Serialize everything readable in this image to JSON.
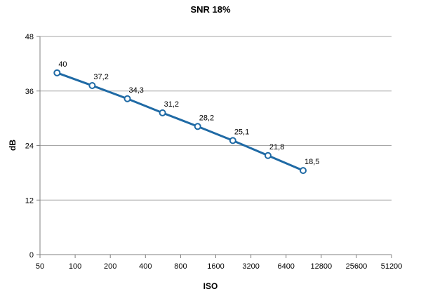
{
  "chart_data": {
    "type": "line",
    "title": "SNR 18%",
    "xlabel": "ISO",
    "ylabel": "dB",
    "x_scale": "log2",
    "x_ticks": [
      50,
      100,
      200,
      400,
      800,
      1600,
      3200,
      6400,
      12800,
      25600,
      51200
    ],
    "y_ticks": [
      0,
      12,
      24,
      36,
      48
    ],
    "xlim": [
      50,
      51200
    ],
    "ylim": [
      0,
      48
    ],
    "grid": "horizontal",
    "series": [
      {
        "color": "#1f6aa5",
        "x": [
          70,
          140,
          280,
          560,
          1120,
          2240,
          4480,
          8960
        ],
        "y": [
          40,
          37.2,
          34.3,
          31.2,
          28.2,
          25.1,
          21.8,
          18.5
        ],
        "labels": [
          "40",
          "37,2",
          "34,3",
          "31,2",
          "28,2",
          "25,1",
          "21,8",
          "18,5"
        ]
      }
    ]
  }
}
